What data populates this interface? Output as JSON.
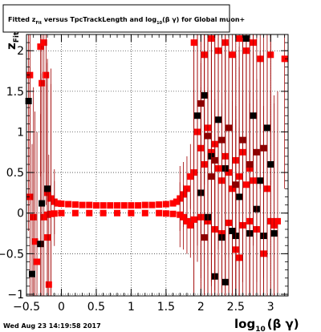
{
  "chart_data": {
    "type": "scatter",
    "title": {
      "prefix": "Fitted  z",
      "sub1": "Fit",
      "mid": " versus TpcTrackLength and log",
      "sub2": "10",
      "suffix": "(β γ) for Global muon+"
    },
    "xlabel": {
      "main": "log",
      "sub": "10",
      "suffix": "(β γ)"
    },
    "ylabel": {
      "main": "z",
      "sub": "Fit"
    },
    "xlim": [
      -0.5,
      3.25
    ],
    "ylim": [
      -1.02,
      2.2
    ],
    "x_ticks": [
      -0.5,
      0,
      0.5,
      1,
      1.5,
      2,
      2.5,
      3
    ],
    "x_tick_labels": [
      "−0.5",
      "0",
      "0.5",
      "1",
      "1.5",
      "2",
      "2.5",
      "3"
    ],
    "y_ticks": [
      -1,
      -0.5,
      0,
      0.5,
      1,
      1.5,
      2
    ],
    "y_tick_labels": [
      "−1",
      "−0.5",
      "0",
      "0.5",
      "1",
      "1.5",
      "2"
    ],
    "grid": true,
    "colors": {
      "primary": "#ff0000",
      "secondary": "#000000",
      "dark_red": "#8b0000",
      "error_bar": "#a00000"
    },
    "series": [
      {
        "color": "#ff0000",
        "points": [
          [
            -0.2,
            0.25
          ],
          [
            -0.15,
            0.18
          ],
          [
            -0.1,
            0.14
          ],
          [
            -0.05,
            0.12
          ],
          [
            0.0,
            0.115
          ],
          [
            0.1,
            0.11
          ],
          [
            0.2,
            0.105
          ],
          [
            0.3,
            0.1
          ],
          [
            0.4,
            0.1
          ],
          [
            0.5,
            0.095
          ],
          [
            0.6,
            0.095
          ],
          [
            0.7,
            0.095
          ],
          [
            0.8,
            0.095
          ],
          [
            0.9,
            0.095
          ],
          [
            1.0,
            0.095
          ],
          [
            1.1,
            0.095
          ],
          [
            1.2,
            0.1
          ],
          [
            1.3,
            0.1
          ],
          [
            1.4,
            0.105
          ],
          [
            1.5,
            0.11
          ],
          [
            1.6,
            0.12
          ],
          [
            1.65,
            0.14
          ],
          [
            1.7,
            0.18
          ],
          [
            1.75,
            0.23
          ],
          [
            1.8,
            0.3
          ],
          [
            1.85,
            0.45
          ],
          [
            -0.25,
            -0.05
          ],
          [
            -0.2,
            -0.02
          ],
          [
            -0.15,
            -0.01
          ],
          [
            -0.1,
            -0.005
          ],
          [
            0.0,
            0.0
          ],
          [
            0.2,
            0.0
          ],
          [
            0.4,
            0.0
          ],
          [
            0.6,
            0.0
          ],
          [
            0.8,
            0.0
          ],
          [
            1.0,
            0.0
          ],
          [
            1.2,
            0.0
          ],
          [
            1.4,
            0.0
          ],
          [
            1.5,
            -0.005
          ],
          [
            1.6,
            -0.01
          ],
          [
            1.7,
            -0.02
          ],
          [
            1.75,
            -0.05
          ],
          [
            1.8,
            -0.1
          ],
          [
            1.85,
            -0.15
          ],
          [
            -0.45,
            1.7
          ],
          [
            -0.45,
            0.2
          ],
          [
            -0.4,
            -0.05
          ],
          [
            -0.38,
            -0.35
          ],
          [
            -0.35,
            -0.6
          ],
          [
            -0.3,
            2.05
          ],
          [
            -0.28,
            1.6
          ],
          [
            -0.25,
            2.1
          ],
          [
            -0.22,
            1.7
          ],
          [
            -0.2,
            -0.3
          ],
          [
            -0.18,
            -0.88
          ],
          [
            1.9,
            0.5
          ],
          [
            1.95,
            1.0
          ],
          [
            2.0,
            0.8
          ],
          [
            2.05,
            0.6
          ],
          [
            2.1,
            1.05
          ],
          [
            2.15,
            0.75
          ],
          [
            2.2,
            0.85
          ],
          [
            2.25,
            0.55
          ],
          [
            2.3,
            0.4
          ],
          [
            2.35,
            0.7
          ],
          [
            2.4,
            0.5
          ],
          [
            2.45,
            0.3
          ],
          [
            2.5,
            0.65
          ],
          [
            2.55,
            0.45
          ],
          [
            2.6,
            0.75
          ],
          [
            2.65,
            0.35
          ],
          [
            2.7,
            0.55
          ],
          [
            2.75,
            0.4
          ],
          [
            1.9,
            -0.08
          ],
          [
            2.0,
            -0.05
          ],
          [
            2.1,
            -0.1
          ],
          [
            2.2,
            -0.2
          ],
          [
            2.3,
            -0.25
          ],
          [
            2.4,
            -0.12
          ],
          [
            2.5,
            -0.45
          ],
          [
            2.55,
            -0.55
          ],
          [
            2.6,
            -0.15
          ],
          [
            2.7,
            -0.1
          ],
          [
            2.8,
            -0.2
          ],
          [
            2.9,
            -0.5
          ],
          [
            3.0,
            -0.1
          ],
          [
            3.05,
            -0.15
          ],
          [
            1.9,
            2.1
          ],
          [
            2.05,
            1.95
          ],
          [
            2.15,
            2.15
          ],
          [
            2.25,
            2.0
          ],
          [
            2.35,
            2.1
          ],
          [
            2.45,
            1.95
          ],
          [
            2.55,
            2.15
          ],
          [
            2.65,
            2.0
          ],
          [
            2.75,
            2.1
          ],
          [
            2.85,
            1.9
          ],
          [
            3.0,
            1.95
          ],
          [
            3.2,
            1.9
          ],
          [
            2.95,
            0.3
          ],
          [
            3.1,
            -0.1
          ]
        ]
      },
      {
        "color": "#000000",
        "points": [
          [
            -0.47,
            1.38
          ],
          [
            -0.3,
            -0.38
          ],
          [
            -0.42,
            -0.75
          ],
          [
            -0.28,
            0.12
          ],
          [
            -0.2,
            0.3
          ],
          [
            1.95,
            1.2
          ],
          [
            2.05,
            1.45
          ],
          [
            2.15,
            0.7
          ],
          [
            2.25,
            1.15
          ],
          [
            2.35,
            0.55
          ],
          [
            2.45,
            -0.22
          ],
          [
            2.55,
            0.2
          ],
          [
            2.65,
            2.15
          ],
          [
            2.75,
            1.2
          ],
          [
            2.85,
            0.4
          ],
          [
            2.95,
            1.05
          ],
          [
            2.0,
            0.25
          ],
          [
            2.1,
            -0.05
          ],
          [
            2.3,
            -0.3
          ],
          [
            2.5,
            -0.28
          ],
          [
            2.7,
            -0.25
          ],
          [
            2.9,
            -0.28
          ],
          [
            3.05,
            -0.25
          ],
          [
            2.35,
            -0.85
          ],
          [
            2.2,
            -0.78
          ],
          [
            2.8,
            0.05
          ],
          [
            3.0,
            0.6
          ]
        ]
      },
      {
        "color": "#8b0000",
        "points": [
          [
            2.0,
            1.35
          ],
          [
            2.1,
            0.95
          ],
          [
            2.2,
            0.65
          ],
          [
            2.3,
            0.9
          ],
          [
            2.4,
            1.05
          ],
          [
            2.5,
            0.35
          ],
          [
            2.6,
            0.9
          ],
          [
            2.7,
            0.6
          ],
          [
            2.8,
            0.75
          ],
          [
            2.9,
            0.8
          ],
          [
            2.05,
            -0.3
          ],
          [
            2.15,
            0.45
          ]
        ]
      }
    ]
  },
  "footer": {
    "timestamp": "Wed Aug 23 14:19:58 2017"
  }
}
